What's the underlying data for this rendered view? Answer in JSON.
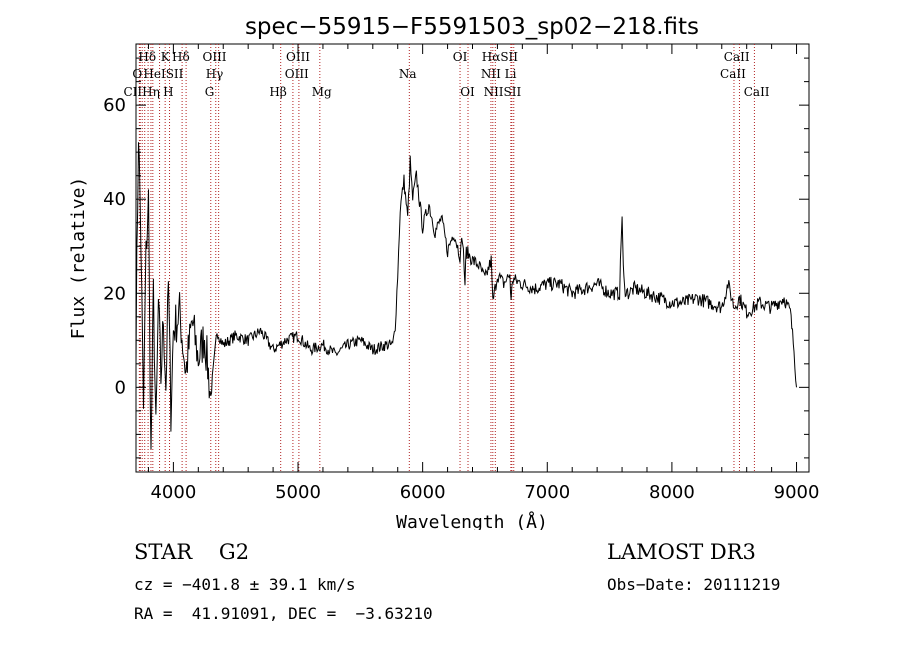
{
  "chart_data": {
    "type": "line",
    "title": "spec−55915−F5591503_sp02−218.fits",
    "xlabel": "Wavelength (Å)",
    "ylabel": "Flux (relative)",
    "xlim": [
      3700,
      9100
    ],
    "ylim": [
      -18,
      73
    ],
    "x_ticks": [
      4000,
      5000,
      6000,
      7000,
      8000,
      9000
    ],
    "x_tick_labels": [
      "4000",
      "5000",
      "6000",
      "7000",
      "8000",
      "9000"
    ],
    "y_ticks": [
      0,
      20,
      40,
      60
    ],
    "y_tick_labels": [
      "0",
      "20",
      "40",
      "60"
    ],
    "grid": false,
    "series": [
      {
        "name": "spectrum",
        "x": [
          3700,
          3720,
          3740,
          3760,
          3780,
          3800,
          3820,
          3840,
          3860,
          3880,
          3900,
          3920,
          3940,
          3960,
          3980,
          4000,
          4050,
          4100,
          4150,
          4200,
          4250,
          4300,
          4350,
          4400,
          4500,
          4600,
          4700,
          4800,
          4900,
          5000,
          5100,
          5200,
          5300,
          5400,
          5500,
          5600,
          5700,
          5760,
          5780,
          5800,
          5820,
          5850,
          5880,
          5900,
          5920,
          5950,
          6000,
          6050,
          6100,
          6150,
          6200,
          6250,
          6300,
          6320,
          6340,
          6350,
          6400,
          6450,
          6500,
          6550,
          6563,
          6600,
          6650,
          6700,
          6710,
          6720,
          6800,
          6900,
          7000,
          7100,
          7200,
          7300,
          7400,
          7500,
          7580,
          7600,
          7610,
          7620,
          7650,
          7700,
          7800,
          7900,
          8000,
          8100,
          8200,
          8300,
          8400,
          8450,
          8500,
          8542,
          8600,
          8662,
          8700,
          8800,
          8900,
          8950,
          8980,
          9000
        ],
        "values": [
          10,
          55,
          30,
          -5,
          28,
          40,
          -15,
          20,
          -10,
          18,
          2,
          15,
          0,
          22,
          -5,
          12,
          16,
          3,
          14,
          6,
          11,
          -2,
          12,
          9,
          11,
          10,
          12,
          8,
          10,
          11,
          8,
          9,
          7,
          9,
          10,
          8,
          9,
          9,
          13,
          24,
          38,
          44,
          36,
          48,
          40,
          45,
          34,
          39,
          33,
          36,
          29,
          33,
          28,
          32,
          22,
          29,
          27,
          26,
          23,
          27,
          18,
          24,
          22,
          24,
          18,
          23,
          22,
          21,
          22,
          22,
          20,
          21,
          22,
          20,
          20,
          37,
          25,
          21,
          20,
          21,
          20,
          19,
          18,
          18,
          19,
          18,
          17,
          22,
          17,
          19,
          16,
          17,
          18,
          17,
          19,
          16,
          8,
          0
        ]
      }
    ],
    "lines": [
      {
        "wl": 3727,
        "label": "OII"
      },
      {
        "wl": 3734,
        "label": "Hθ"
      },
      {
        "wl": 3750,
        "label": "Hθ"
      },
      {
        "wl": 3770,
        "label": "Hθ"
      },
      {
        "wl": 3797,
        "label": "Hθ"
      },
      {
        "wl": 3820,
        "label": "HeI"
      },
      {
        "wl": 3835,
        "label": "Hη"
      },
      {
        "wl": 3889,
        "label": "HeI"
      },
      {
        "wl": 3934,
        "label": "K"
      },
      {
        "wl": 3969,
        "label": "H"
      },
      {
        "wl": 4070,
        "label": "SII"
      },
      {
        "wl": 4102,
        "label": "Hδ"
      },
      {
        "wl": 4300,
        "label": "G"
      },
      {
        "wl": 4340,
        "label": "Hγ"
      },
      {
        "wl": 4363,
        "label": "OIII"
      },
      {
        "wl": 4861,
        "label": "Hβ"
      },
      {
        "wl": 4959,
        "label": "OIII"
      },
      {
        "wl": 5007,
        "label": "OIII"
      },
      {
        "wl": 5175,
        "label": "Mg"
      },
      {
        "wl": 5893,
        "label": "Na"
      },
      {
        "wl": 6300,
        "label": "OI"
      },
      {
        "wl": 6364,
        "label": "OI"
      },
      {
        "wl": 6548,
        "label": "NII"
      },
      {
        "wl": 6563,
        "label": "Hα"
      },
      {
        "wl": 6583,
        "label": "NII"
      },
      {
        "wl": 6708,
        "label": "Li"
      },
      {
        "wl": 6716,
        "label": "SII"
      },
      {
        "wl": 6731,
        "label": "SII"
      },
      {
        "wl": 8498,
        "label": "CaII"
      },
      {
        "wl": 8542,
        "label": "CaII"
      },
      {
        "wl": 8662,
        "label": "CaII"
      }
    ],
    "line_labels": [
      {
        "text": "Hδ",
        "row": 1,
        "wl": 3790
      },
      {
        "text": "K",
        "row": 1,
        "wl": 3935
      },
      {
        "text": "Hδ",
        "row": 1,
        "wl": 4060
      },
      {
        "text": "OIII",
        "row": 1,
        "wl": 4330
      },
      {
        "text": "OIII",
        "row": 1,
        "wl": 5000
      },
      {
        "text": "OI",
        "row": 1,
        "wl": 6300
      },
      {
        "text": "HαSII",
        "row": 1,
        "wl": 6620
      },
      {
        "text": "CaII",
        "row": 1,
        "wl": 8520
      },
      {
        "text": "O",
        "row": 2,
        "wl": 3710
      },
      {
        "text": "HeISII",
        "row": 2,
        "wl": 3920
      },
      {
        "text": "Hγ",
        "row": 2,
        "wl": 4330
      },
      {
        "text": "OIII",
        "row": 2,
        "wl": 4990
      },
      {
        "text": "Na",
        "row": 2,
        "wl": 5880
      },
      {
        "text": "NII Li",
        "row": 2,
        "wl": 6610
      },
      {
        "text": "CaII",
        "row": 2,
        "wl": 8490
      },
      {
        "text": "CIIHη",
        "row": 3,
        "wl": 3745
      },
      {
        "text": "H",
        "row": 3,
        "wl": 3960
      },
      {
        "text": "G",
        "row": 3,
        "wl": 4290
      },
      {
        "text": "Hβ",
        "row": 3,
        "wl": 4840
      },
      {
        "text": "Mg",
        "row": 3,
        "wl": 5190
      },
      {
        "text": "OI",
        "row": 3,
        "wl": 6360
      },
      {
        "text": "NIISII",
        "row": 3,
        "wl": 6640
      },
      {
        "text": "CaII",
        "row": 3,
        "wl": 8680
      }
    ],
    "colors": {
      "spectrum": "#000000",
      "lines": "#b22222",
      "axes": "#000000"
    }
  },
  "info": {
    "star_class": "STAR    G2",
    "survey": "LAMOST DR3",
    "cz": "cz = −401.8 ± 39.1 km/s",
    "obs_date": "Obs−Date: 20111219",
    "radec": "RA =  41.91091, DEC =  −3.63210"
  }
}
